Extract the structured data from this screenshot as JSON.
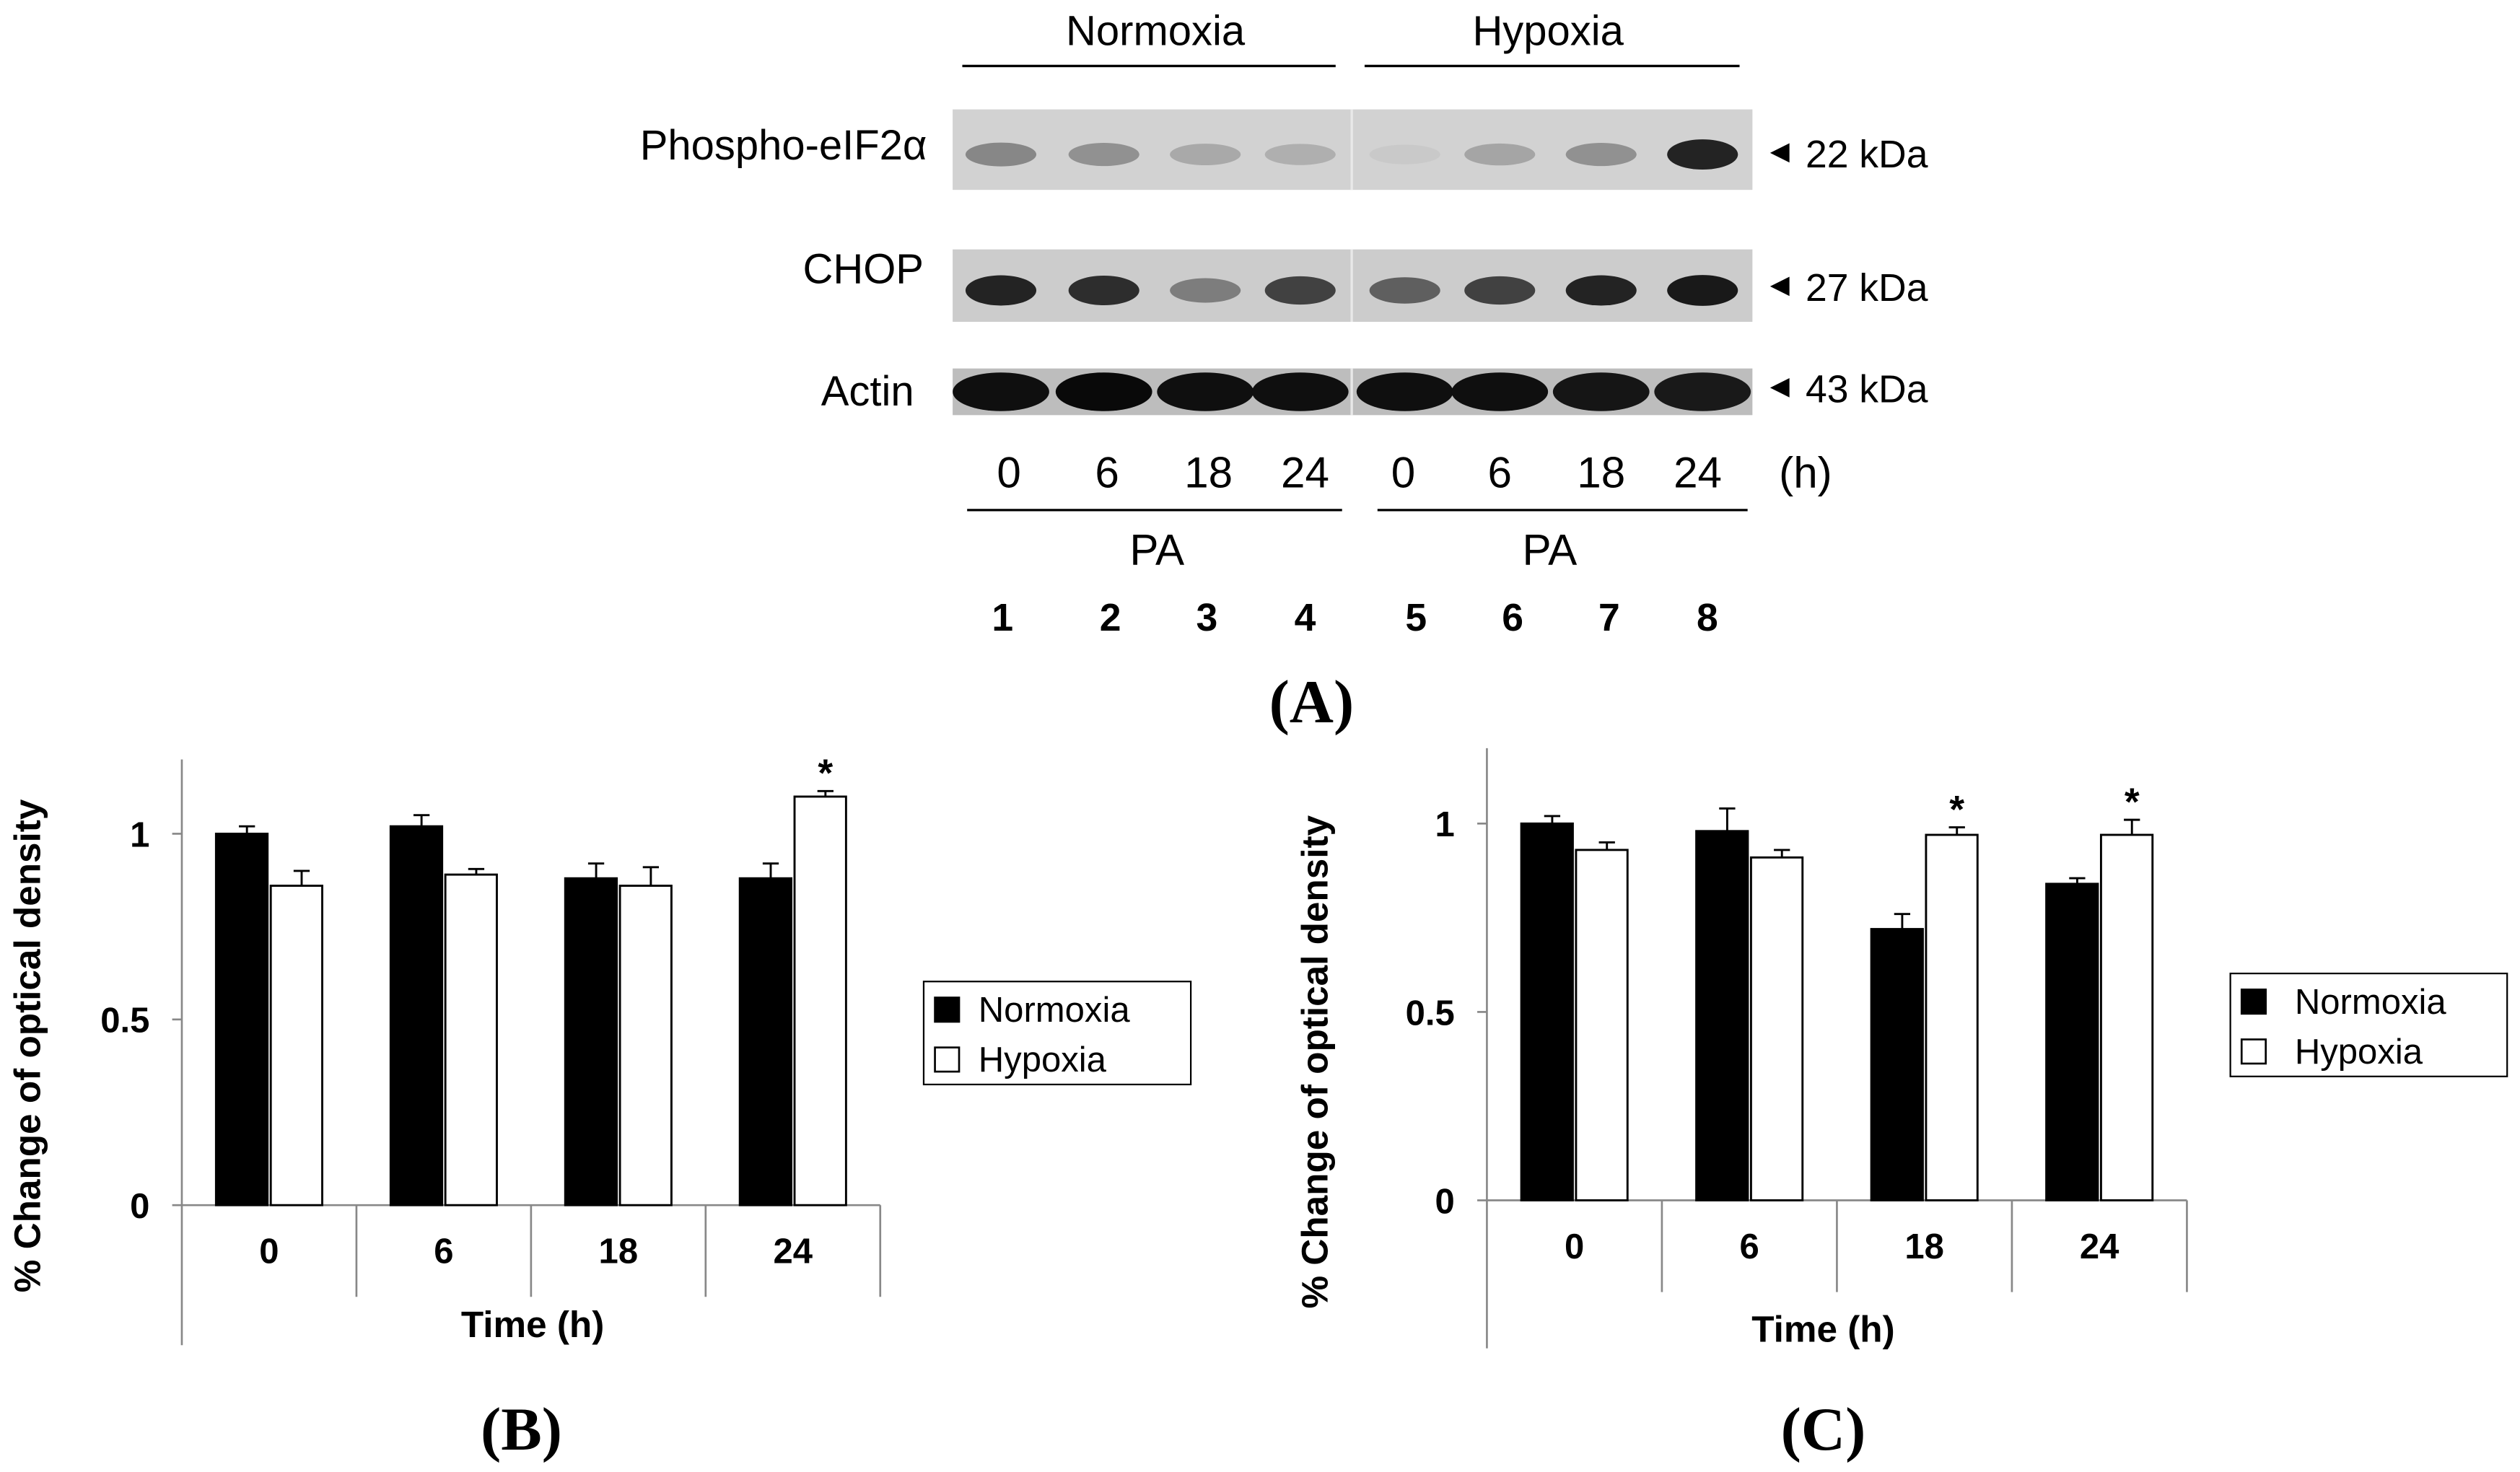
{
  "blot": {
    "groups": [
      "Normoxia",
      "Hypoxia"
    ],
    "rows": [
      {
        "label": "Phospho-eIF2α",
        "marker": "22 kDa",
        "intensities": [
          0.35,
          0.3,
          0.18,
          0.15,
          0.02,
          0.2,
          0.3,
          0.85
        ]
      },
      {
        "label": "CHOP",
        "marker": "27 kDa",
        "intensities": [
          0.85,
          0.8,
          0.4,
          0.7,
          0.55,
          0.7,
          0.85,
          0.9
        ]
      },
      {
        "label": "Actin",
        "marker": "43 kDa",
        "intensities": [
          0.95,
          0.98,
          0.95,
          0.95,
          0.95,
          0.95,
          0.92,
          0.9
        ]
      }
    ],
    "times": [
      "0",
      "6",
      "18",
      "24",
      "0",
      "6",
      "18",
      "24"
    ],
    "time_unit": "(h)",
    "treatment": [
      "PA",
      "PA"
    ],
    "lanes": [
      "1",
      "2",
      "3",
      "4",
      "5",
      "6",
      "7",
      "8"
    ],
    "panel_label": "(A)"
  },
  "chart_data": [
    {
      "type": "bar",
      "panel_label": "(B)",
      "categories": [
        "0",
        "6",
        "18",
        "24"
      ],
      "series": [
        {
          "name": "Normoxia",
          "values": [
            1.0,
            1.02,
            0.88,
            0.88
          ],
          "errors": [
            0.02,
            0.03,
            0.04,
            0.04
          ],
          "color": "#000000"
        },
        {
          "name": "Hypoxia",
          "values": [
            0.86,
            0.89,
            0.86,
            1.1
          ],
          "errors": [
            0.04,
            0.015,
            0.05,
            0.015
          ],
          "color": "#ffffff"
        }
      ],
      "significance": [
        {
          "category": "24",
          "series": "Hypoxia",
          "label": "*"
        }
      ],
      "xlabel": "Time (h)",
      "ylabel": "% Change of optical density",
      "ylim": [
        0,
        1.2
      ],
      "yticks": [
        0,
        0.5,
        1
      ],
      "ytick_labels": [
        "0",
        "0.5",
        "1"
      ],
      "legend": "right",
      "grid": false
    },
    {
      "type": "bar",
      "panel_label": "(C)",
      "categories": [
        "0",
        "6",
        "18",
        "24"
      ],
      "series": [
        {
          "name": "Normoxia",
          "values": [
            1.0,
            0.98,
            0.72,
            0.84
          ],
          "errors": [
            0.02,
            0.06,
            0.04,
            0.015
          ],
          "color": "#000000"
        },
        {
          "name": "Hypoxia",
          "values": [
            0.93,
            0.91,
            0.97,
            0.97
          ],
          "errors": [
            0.02,
            0.02,
            0.02,
            0.04
          ],
          "color": "#ffffff"
        }
      ],
      "significance": [
        {
          "category": "18",
          "series": "Hypoxia",
          "label": "*"
        },
        {
          "category": "24",
          "series": "Hypoxia",
          "label": "*"
        }
      ],
      "xlabel": "Time (h)",
      "ylabel": "% Change of optical density",
      "ylim": [
        0,
        1.2
      ],
      "yticks": [
        0,
        0.5,
        1
      ],
      "ytick_labels": [
        "0",
        "0.5",
        "1"
      ],
      "legend": "right",
      "grid": false
    }
  ]
}
